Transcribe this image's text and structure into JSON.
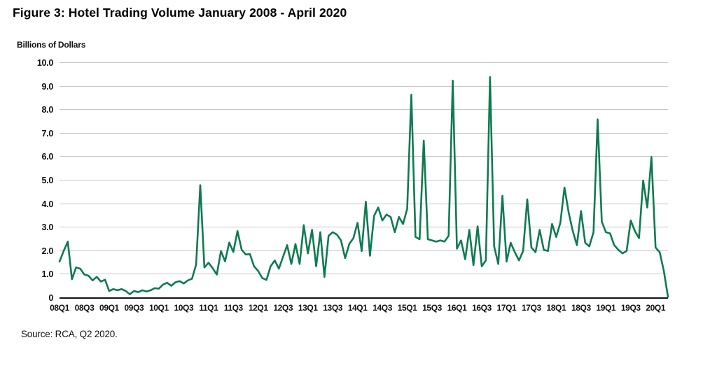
{
  "figure": {
    "title": "Figure 3: Hotel Trading Volume January 2008 - April 2020",
    "y_axis_label": "Billions of Dollars",
    "source": "Source: RCA, Q2 2020."
  },
  "chart_data": {
    "type": "line",
    "title": "Figure 3: Hotel Trading Volume January 2008 - April 2020",
    "series_name": "Hotel trading volume",
    "unit": "Billions of Dollars",
    "frequency": "monthly",
    "period_start": "January 2008",
    "period_end": "April 2020",
    "ylim": [
      0,
      10
    ],
    "grid": "horizontal",
    "legend": "none",
    "line_color": "#0f7a50",
    "y_tick_labels": [
      "10.0",
      "9.0",
      "8.0",
      "7.0",
      "6.0",
      "5.0",
      "4.0",
      "3.0",
      "2.0",
      "1.0",
      "0"
    ],
    "x_tick_labels": [
      "08Q1",
      "08Q3",
      "09Q1",
      "09Q3",
      "10Q1",
      "10Q3",
      "11Q1",
      "11Q3",
      "12Q1",
      "12Q3",
      "13Q1",
      "13Q3",
      "14Q1",
      "14Q3",
      "15Q1",
      "15Q3",
      "16Q1",
      "16Q3",
      "17Q1",
      "17Q3",
      "18Q1",
      "18Q3",
      "19Q1",
      "19Q3",
      "20Q1"
    ],
    "months_per_x_tick": 6,
    "values": [
      1.55,
      2.0,
      2.4,
      0.8,
      1.3,
      1.25,
      1.0,
      0.95,
      0.75,
      0.9,
      0.7,
      0.78,
      0.3,
      0.38,
      0.33,
      0.38,
      0.3,
      0.16,
      0.3,
      0.25,
      0.33,
      0.28,
      0.33,
      0.42,
      0.4,
      0.57,
      0.65,
      0.52,
      0.67,
      0.72,
      0.62,
      0.75,
      0.82,
      1.42,
      4.8,
      1.3,
      1.5,
      1.27,
      1.0,
      2.0,
      1.56,
      2.36,
      1.96,
      2.85,
      2.06,
      1.85,
      1.87,
      1.35,
      1.15,
      0.85,
      0.77,
      1.35,
      1.6,
      1.25,
      1.75,
      2.25,
      1.45,
      2.3,
      1.45,
      3.1,
      1.9,
      2.9,
      1.35,
      2.8,
      0.9,
      2.65,
      2.8,
      2.7,
      2.45,
      1.7,
      2.3,
      2.55,
      3.2,
      2.0,
      4.1,
      1.8,
      3.5,
      3.85,
      3.3,
      3.55,
      3.45,
      2.8,
      3.45,
      3.15,
      3.8,
      8.65,
      2.6,
      2.5,
      6.7,
      2.5,
      2.45,
      2.4,
      2.45,
      2.4,
      2.65,
      9.25,
      2.1,
      2.45,
      1.65,
      2.9,
      1.4,
      3.05,
      1.35,
      1.6,
      9.4,
      2.2,
      1.45,
      4.35,
      1.55,
      2.35,
      1.95,
      1.6,
      2.0,
      4.2,
      2.15,
      1.95,
      2.9,
      2.05,
      2.0,
      3.15,
      2.6,
      3.2,
      4.7,
      3.65,
      2.85,
      2.25,
      3.7,
      2.35,
      2.2,
      2.8,
      7.6,
      3.25,
      2.8,
      2.75,
      2.25,
      2.05,
      1.9,
      2.0,
      3.3,
      2.85,
      2.55,
      5.0,
      3.85,
      6.0,
      2.15,
      1.95,
      1.15,
      0.05
    ]
  }
}
